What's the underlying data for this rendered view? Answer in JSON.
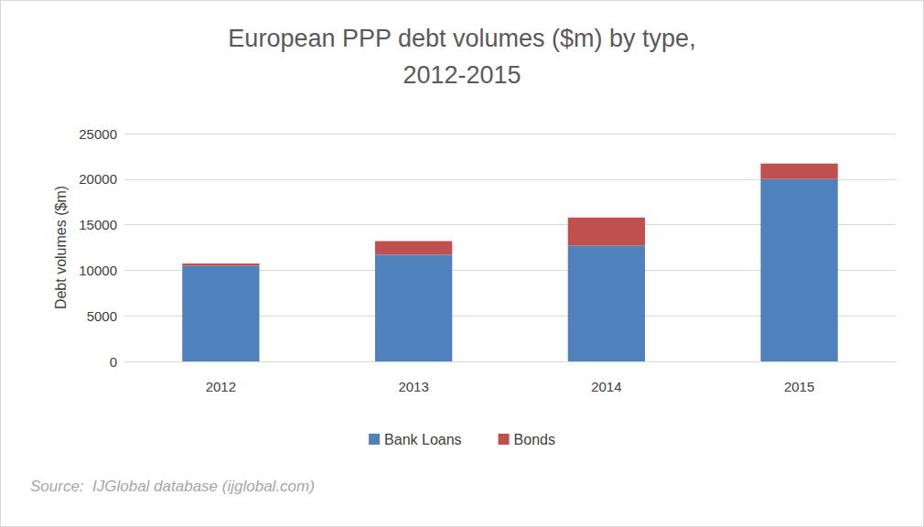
{
  "chart_data": {
    "type": "bar",
    "title": "European PPP debt volumes ($m) by type,\n2012-2015",
    "y_label": "Debt volumes ($m)",
    "annotation": "Source:  IJGlobal database (ijglobal.com)",
    "categories": [
      "2012",
      "2013",
      "2014",
      "2015"
    ],
    "series": [
      {
        "name": "Bank Loans",
        "color": "#4f81bd",
        "values": [
          10500,
          11700,
          12700,
          20000
        ]
      },
      {
        "name": "Bonds",
        "color": "#c0504d",
        "values": [
          250,
          1500,
          3100,
          1700
        ]
      }
    ],
    "stacked": true,
    "ylim": [
      0,
      25000
    ],
    "yticks": [
      0,
      5000,
      10000,
      15000,
      20000,
      25000
    ],
    "grid": true,
    "legend": "bottom"
  }
}
